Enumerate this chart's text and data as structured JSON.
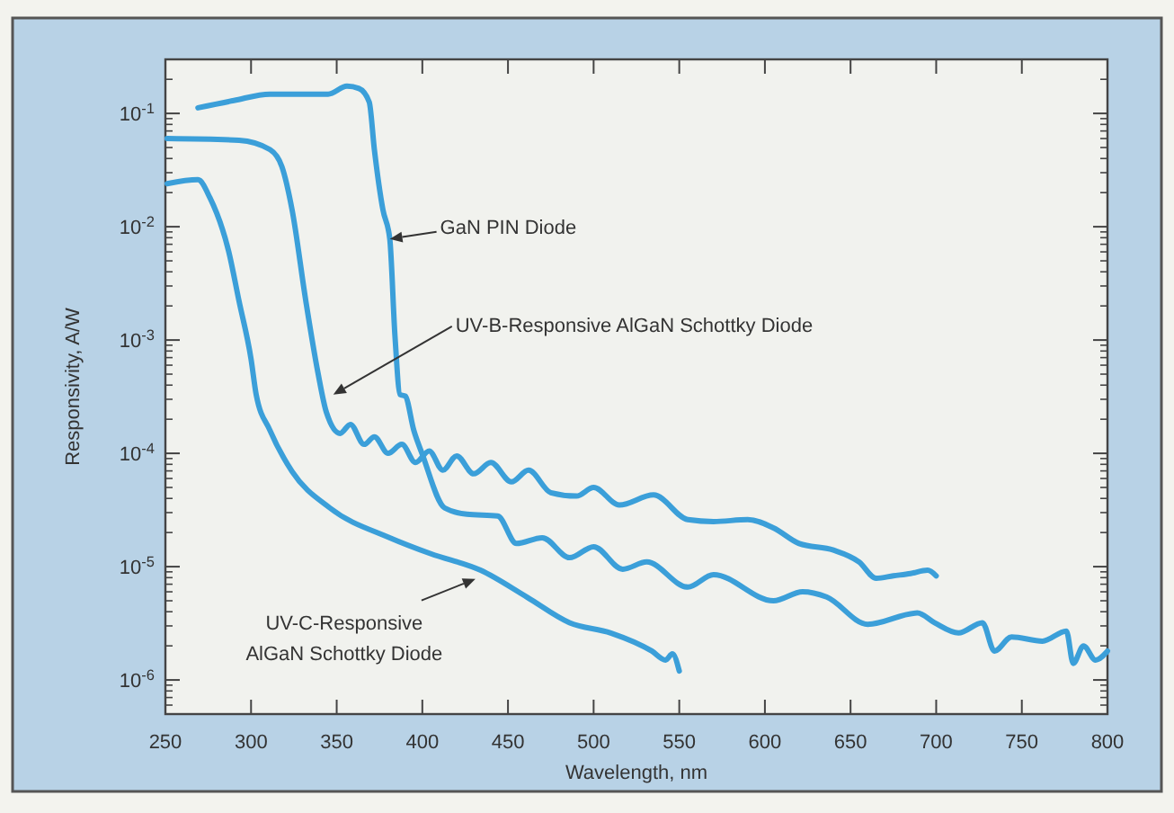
{
  "chart_data": {
    "type": "line",
    "xlabel": "Wavelength, nm",
    "ylabel": "Responsivity, A/W",
    "log": "y",
    "xlim": [
      250,
      800
    ],
    "ylim": [
      5e-07,
      0.3
    ],
    "xticks": [
      250,
      300,
      350,
      400,
      450,
      500,
      550,
      600,
      650,
      700,
      750,
      800
    ],
    "yticks": [
      {
        "value": 1e-06,
        "label": "10$^{-6}$"
      },
      {
        "value": 1e-05,
        "label": "10$^{-5}$"
      },
      {
        "value": 0.0001,
        "label": "10$^{-4}$"
      },
      {
        "value": 0.001,
        "label": "10$^{-3}$"
      },
      {
        "value": 0.01,
        "label": "10$^{-2}$"
      },
      {
        "value": 0.1,
        "label": "10$^{-1}$"
      }
    ],
    "grid": false,
    "marker": "none",
    "line_style": "solid",
    "series": [
      {
        "color": "#3b9fd9",
        "x": [
          269,
          290,
          311,
          345,
          356,
          363,
          369,
          372,
          377,
          381,
          384,
          387,
          390,
          395,
          400,
          413,
          426,
          444,
          455,
          470,
          486,
          500,
          517,
          531,
          555,
          570,
          605,
          622,
          636,
          660,
          689,
          699,
          713,
          727,
          734,
          744,
          762,
          776,
          780,
          786,
          793,
          800
        ],
        "values": [
          0.112,
          0.13,
          0.148,
          0.148,
          0.174,
          0.166,
          0.126,
          0.048,
          0.0141,
          0.0078,
          0.0011,
          0.00033,
          0.00032,
          0.00016,
          9.8e-05,
          3.3e-05,
          2.9e-05,
          2.8e-05,
          1.6e-05,
          1.8e-05,
          1.2e-05,
          1.5e-05,
          9.5e-06,
          1.1e-05,
          6.6e-06,
          8.5e-06,
          5e-06,
          6e-06,
          5.4e-06,
          3.1e-06,
          3.9e-06,
          3.2e-06,
          2.6e-06,
          3.2e-06,
          1.8e-06,
          2.4e-06,
          2.2e-06,
          2.7e-06,
          1.4e-06,
          2e-06,
          1.5e-06,
          1.8e-06
        ]
      },
      {
        "color": "#3b9fd9",
        "x": [
          251,
          293,
          311,
          318,
          324,
          332,
          339,
          344,
          352,
          358,
          366,
          372,
          380,
          388,
          396,
          404,
          412,
          420,
          430,
          440,
          452,
          462,
          475,
          490,
          500,
          515,
          535,
          555,
          570,
          590,
          605,
          620,
          640,
          655,
          665,
          675,
          685,
          695,
          700
        ],
        "values": [
          0.06,
          0.058,
          0.048,
          0.034,
          0.014,
          0.0022,
          0.00052,
          0.00023,
          0.00015,
          0.00018,
          0.00012,
          0.00014,
          0.0001,
          0.00012,
          8.3e-05,
          0.000105,
          7.1e-05,
          9.5e-05,
          6.6e-05,
          8.3e-05,
          5.6e-05,
          7.1e-05,
          4.5e-05,
          4.2e-05,
          5e-05,
          3.5e-05,
          4.3e-05,
          2.6e-05,
          2.5e-05,
          2.6e-05,
          2.2e-05,
          1.6e-05,
          1.4e-05,
          1.1e-05,
          7.9e-06,
          8.3e-06,
          8.7e-06,
          9.3e-06,
          8.3e-06
        ]
      },
      {
        "color": "#3b9fd9",
        "x": [
          251,
          269,
          276,
          287,
          293,
          300,
          303,
          311,
          324,
          346,
          381,
          405,
          434,
          461,
          486,
          510,
          534,
          542,
          546,
          550
        ],
        "values": [
          0.024,
          0.026,
          0.018,
          0.006,
          0.0022,
          0.00068,
          0.00033,
          0.00016,
          6.9e-05,
          3.3e-05,
          1.8e-05,
          1.3e-05,
          9.3e-06,
          5.4e-06,
          3.2e-06,
          2.6e-06,
          1.8e-06,
          1.5e-06,
          1.7e-06,
          1.2e-06
        ]
      }
    ],
    "annotations": [
      {
        "text": "GaN PIN Diode",
        "x": 381,
        "y": 0.0078
      },
      {
        "text": "UV-B-Responsive AlGaN Schottky Diode",
        "x": 348,
        "y": 0.00033
      },
      {
        "text": "UV-C-Responsive\nAlGaN Schottky Diode",
        "x": 431,
        "y": 7.8e-06
      }
    ]
  }
}
